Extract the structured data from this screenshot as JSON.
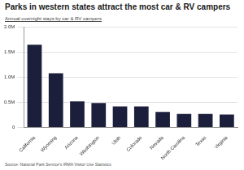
{
  "chart_data": {
    "type": "bar",
    "title": "Parks in western states attract the most car & RV campers",
    "subtitle": "Annual overnight stays by car & RV campers",
    "source": "Source: National Park Service's IRMA Visitor Use Statistics",
    "categories": [
      "California",
      "Wyoming",
      "Arizona",
      "Washington",
      "Utah",
      "Colorado",
      "Nevada",
      "North Carolina",
      "Texas",
      "Virginia"
    ],
    "values": [
      1650000,
      1080000,
      520000,
      490000,
      420000,
      420000,
      310000,
      270000,
      270000,
      260000
    ],
    "color": "#1b1f3b",
    "ylim": [
      0,
      2000000
    ],
    "yticks": [
      0,
      {
        "value": 500000,
        "label": "0.5M"
      },
      {
        "value": 1000000,
        "label": "1.0M"
      },
      {
        "value": 1500000,
        "label": "1.5M"
      },
      {
        "value": 2000000,
        "label": "2.0M"
      }
    ],
    "grid": true
  }
}
